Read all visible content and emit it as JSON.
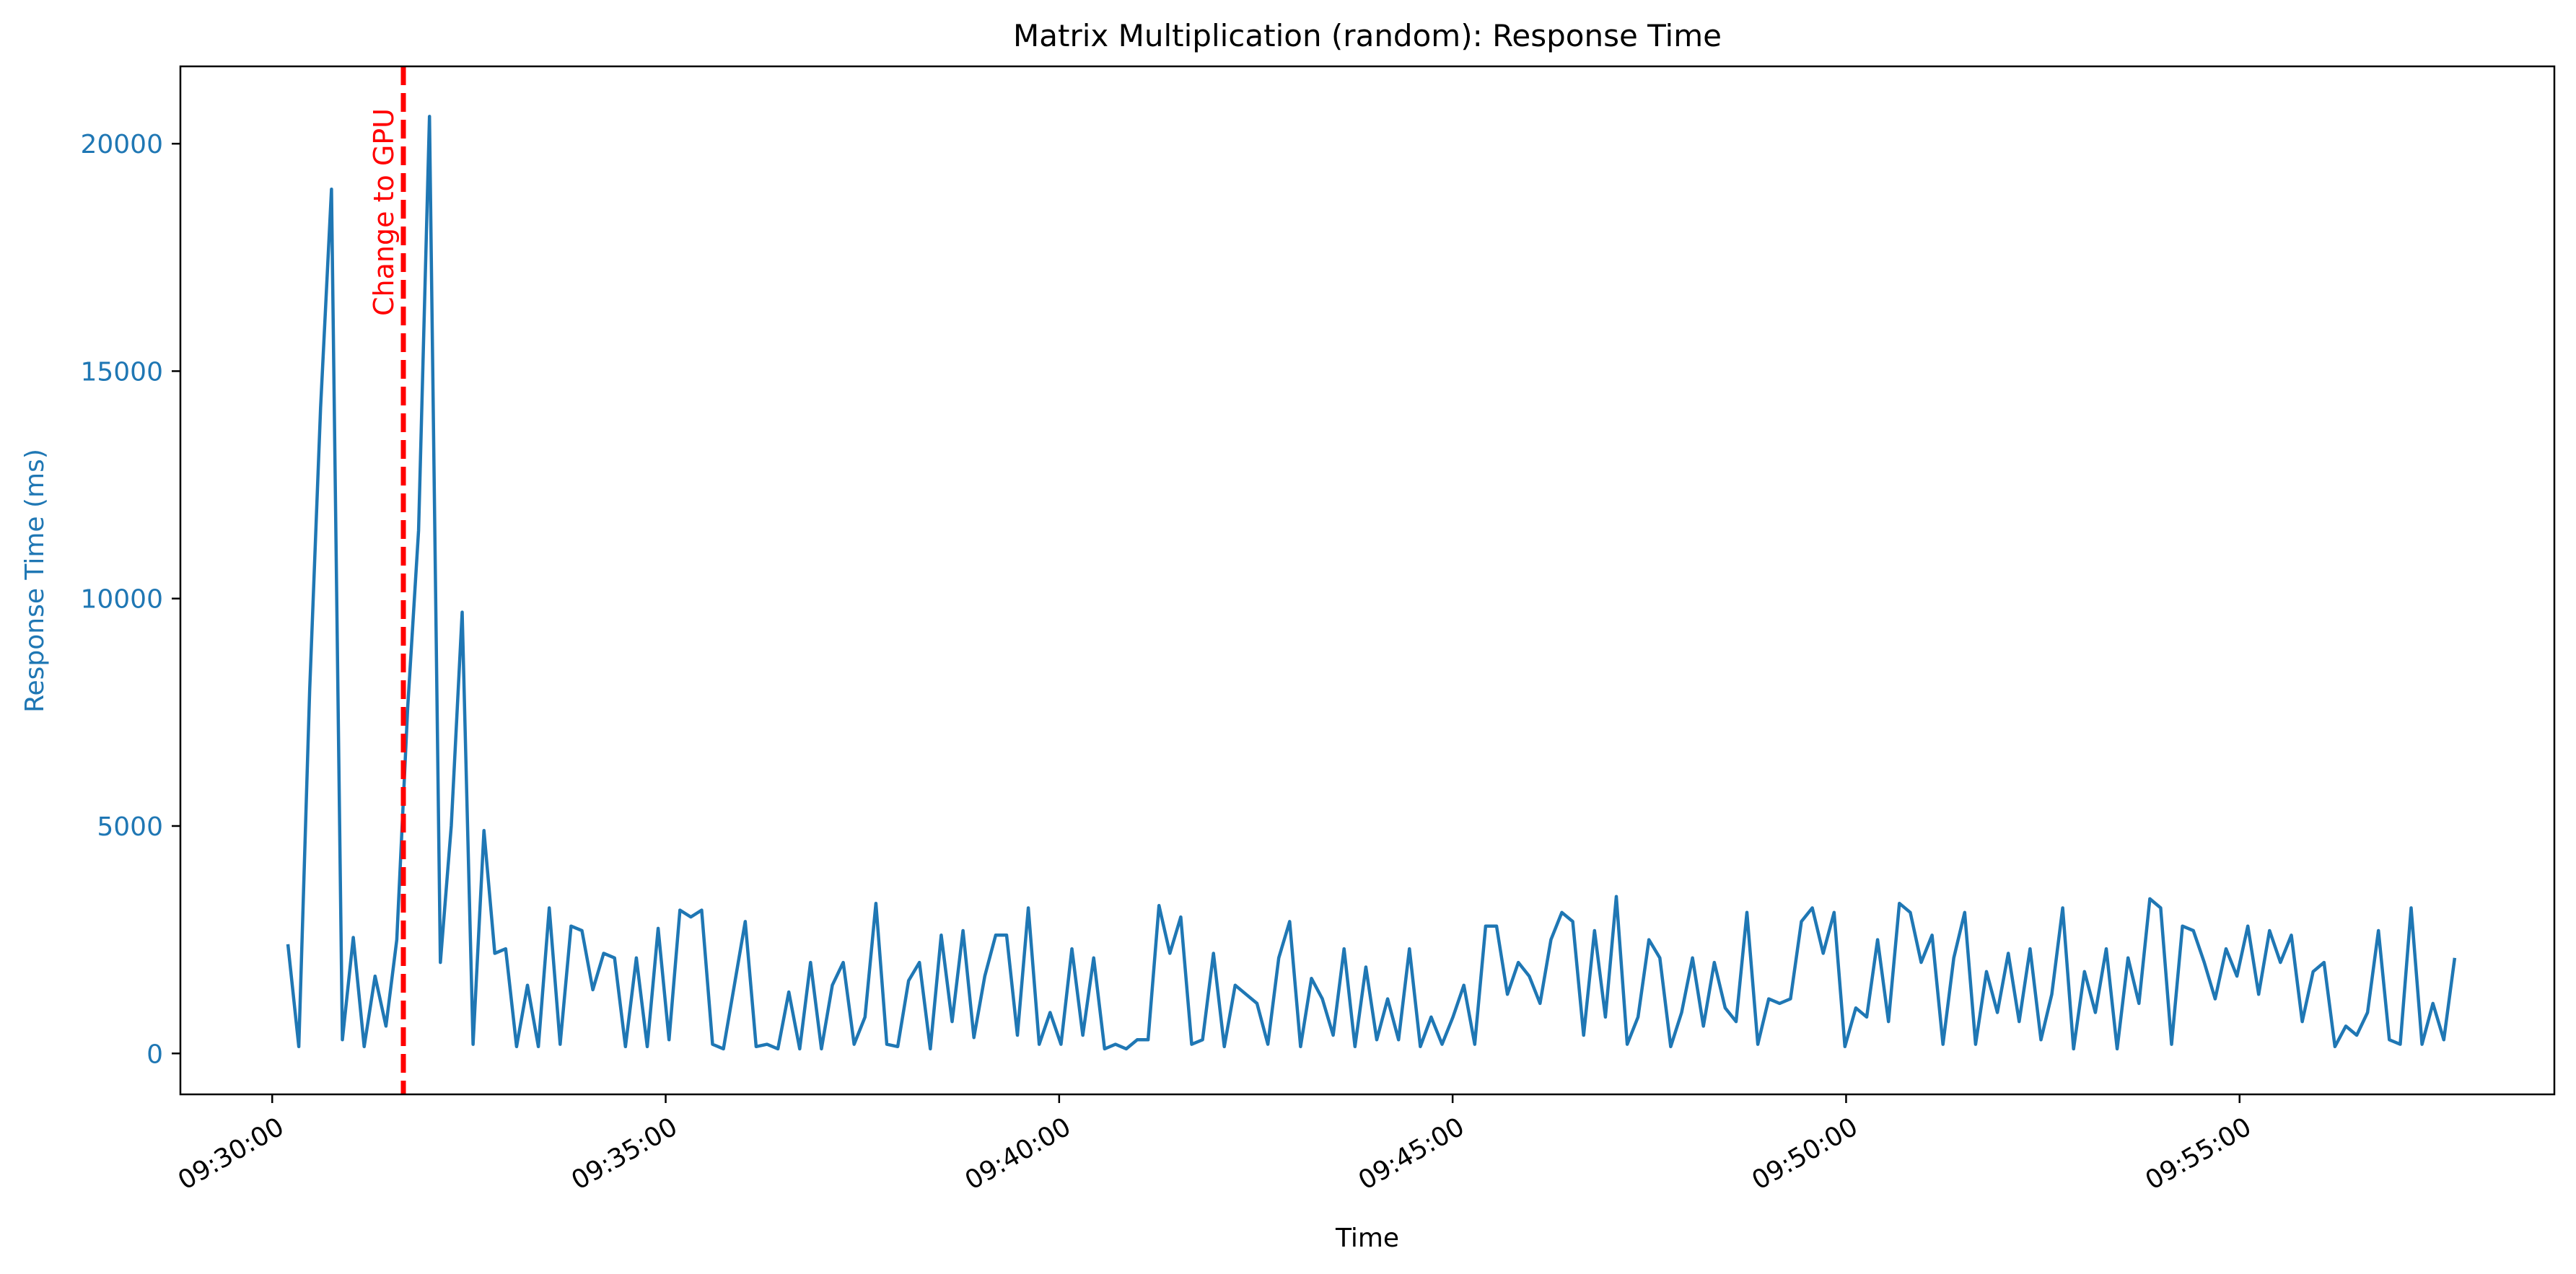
{
  "chart_data": {
    "type": "line",
    "title": "Matrix Multiplication (random): Response Time",
    "xlabel": "Time",
    "ylabel": "Response Time (ms)",
    "x_ticks": [
      "09:30:00",
      "09:35:00",
      "09:40:00",
      "09:45:00",
      "09:50:00",
      "09:55:00"
    ],
    "y_ticks": [
      0,
      5000,
      10000,
      15000,
      20000
    ],
    "xlim": [
      "09:28:50",
      "09:59:00"
    ],
    "ylim": [
      -900,
      21700
    ],
    "grid": false,
    "legend": "none",
    "colors": {
      "series": "#1f77b4",
      "annotation": "#ff0000",
      "ylabel": "#1f77b4",
      "text": "#000000"
    },
    "annotations": [
      {
        "type": "vline",
        "x": "09:31:40",
        "label": "Change to GPU",
        "style": "dashed"
      }
    ],
    "series": [
      {
        "x_start": "09:30:12",
        "x_end": "09:57:44",
        "values": [
          2400,
          150,
          8000,
          14200,
          19000,
          300,
          2550,
          150,
          1700,
          600,
          2500,
          7600,
          11500,
          20600,
          2000,
          5000,
          9700,
          200,
          4900,
          2200,
          2300,
          150,
          1500,
          150,
          3200,
          200,
          2800,
          2700,
          1400,
          2200,
          2100,
          150,
          2100,
          150,
          2750,
          300,
          3150,
          3000,
          3150,
          200,
          100,
          1500,
          2900,
          150,
          200,
          100,
          1350,
          100,
          2000,
          100,
          1500,
          2000,
          200,
          800,
          3300,
          200,
          150,
          1600,
          2000,
          100,
          2600,
          700,
          2700,
          350,
          1700,
          2600,
          2600,
          400,
          3200,
          200,
          900,
          200,
          2300,
          400,
          2100,
          100,
          200,
          100,
          300,
          300,
          3250,
          2200,
          3000,
          200,
          300,
          2200,
          150,
          1500,
          1300,
          1100,
          200,
          2100,
          2900,
          150,
          1650,
          1200,
          400,
          2300,
          150,
          1900,
          300,
          1200,
          300,
          2300,
          150,
          800,
          200,
          800,
          1500,
          200,
          2800,
          2800,
          1300,
          2000,
          1700,
          1100,
          2500,
          3100,
          2900,
          400,
          2700,
          800,
          3450,
          200,
          800,
          2500,
          2100,
          150,
          900,
          2100,
          600,
          2000,
          1000,
          700,
          3100,
          200,
          1200,
          1100,
          1200,
          2900,
          3200,
          2200,
          3100,
          150,
          1000,
          800,
          2500,
          700,
          3300,
          3100,
          2000,
          2600,
          200,
          2100,
          3100,
          200,
          1800,
          900,
          2200,
          700,
          2300,
          300,
          1300,
          3200,
          100,
          1800,
          900,
          2300,
          100,
          2100,
          1100,
          3400,
          3200,
          200,
          2800,
          2700,
          2000,
          1200,
          2300,
          1700,
          2800,
          1300,
          2700,
          2000,
          2600,
          700,
          1800,
          2000,
          150,
          600,
          400,
          900,
          2700,
          300,
          200,
          3200,
          200,
          1100,
          300,
          2100
        ]
      }
    ]
  }
}
